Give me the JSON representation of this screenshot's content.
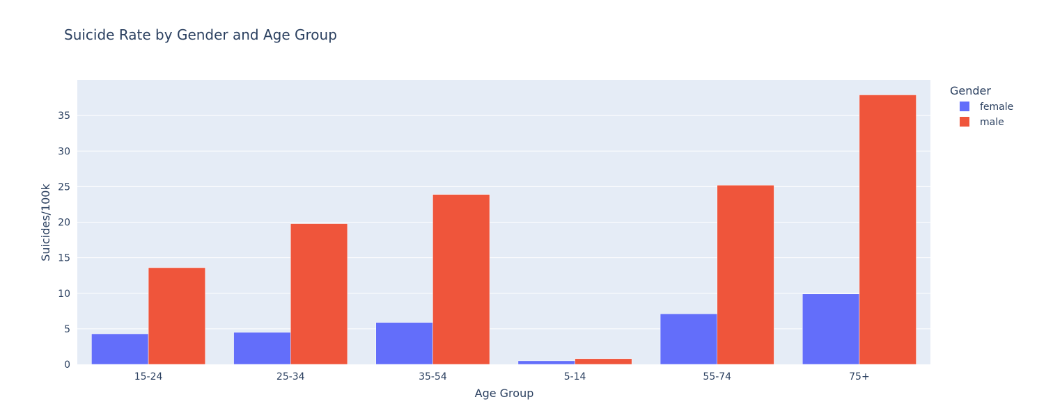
{
  "chart_data": {
    "type": "bar",
    "title": "Suicide Rate by Gender and Age Group",
    "xlabel": "Age Group",
    "ylabel": "Suicides/100k",
    "categories": [
      "15-24",
      "25-34",
      "35-54",
      "5-14",
      "55-74",
      "75+"
    ],
    "series": [
      {
        "name": "female",
        "color": "#636efa",
        "values": [
          4.3,
          4.5,
          5.9,
          0.5,
          7.1,
          9.9
        ]
      },
      {
        "name": "male",
        "color": "#ef553b",
        "values": [
          13.6,
          19.8,
          23.9,
          0.8,
          25.2,
          37.9
        ]
      }
    ],
    "ylim": [
      0,
      40
    ],
    "yticks": [
      0,
      5,
      10,
      15,
      20,
      25,
      30,
      35
    ],
    "grid": true,
    "legend": {
      "title": "Gender",
      "position": "top-right"
    },
    "plot_background": "#e5ecf6"
  }
}
